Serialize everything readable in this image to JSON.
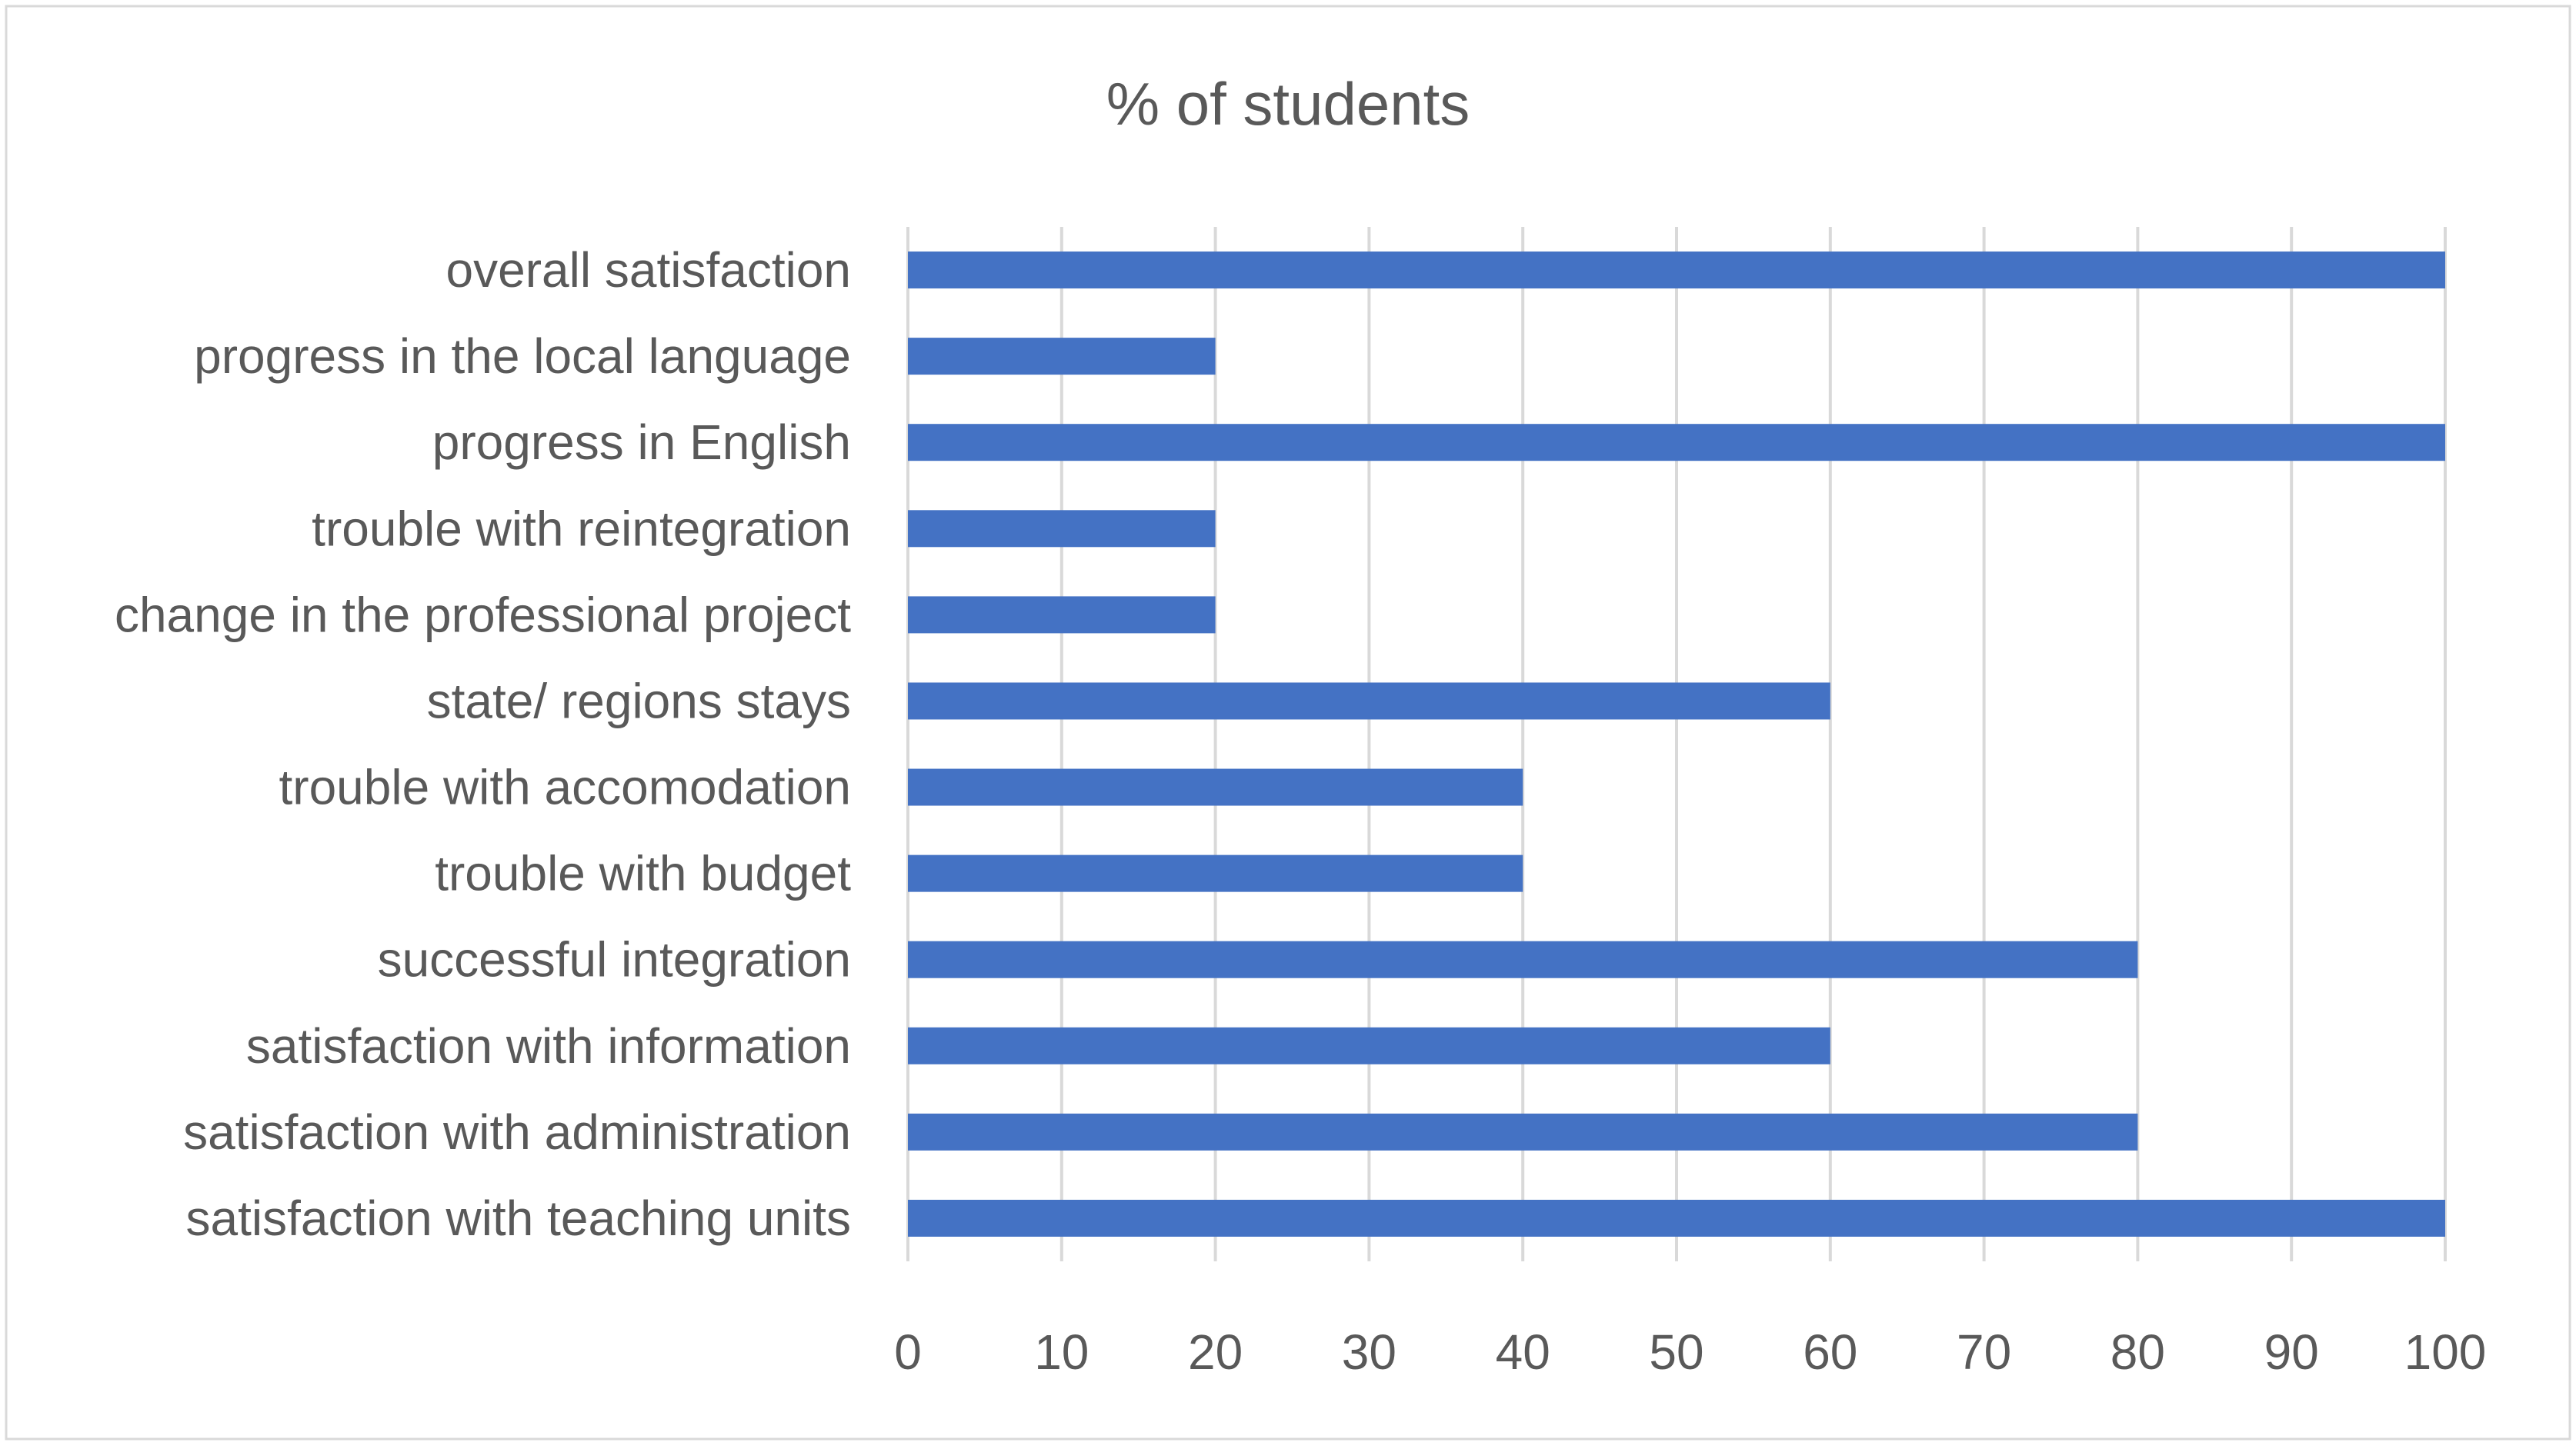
{
  "chart_data": {
    "type": "bar",
    "orientation": "horizontal",
    "title": "% of students",
    "xlabel": "",
    "ylabel": "",
    "categories": [
      "overall satisfaction",
      "progress in the local language",
      "progress in English",
      "trouble with reintegration",
      "change in the professional project",
      "state/ regions stays",
      "trouble with accomodation",
      "trouble with budget",
      "successful integration",
      "satisfaction with information",
      "satisfaction with administration",
      "satisfaction with teaching units"
    ],
    "values": [
      100,
      20,
      100,
      20,
      20,
      60,
      40,
      40,
      80,
      60,
      80,
      100
    ],
    "xlim": [
      0,
      100
    ],
    "xticks": [
      0,
      10,
      20,
      30,
      40,
      50,
      60,
      70,
      80,
      90,
      100
    ],
    "grid": "vertical",
    "legend": "none",
    "colors": {
      "bar": "#4472C4",
      "grid": "#D9D9D9",
      "text": "#595959",
      "frame": "#D9D9D9",
      "background": "#FFFFFF"
    }
  }
}
